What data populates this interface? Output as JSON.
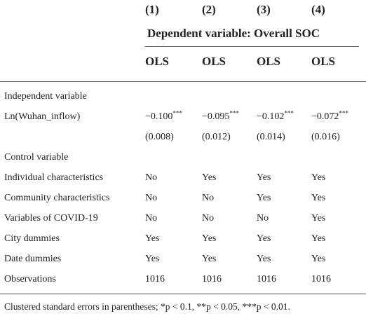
{
  "header": {
    "col_numbers": [
      "(1)",
      "(2)",
      "(3)",
      "(4)"
    ],
    "dependent_variable": "Dependent variable: Overall SOC",
    "methods": [
      "OLS",
      "OLS",
      "OLS",
      "OLS"
    ]
  },
  "sections": {
    "independent_label": "Independent variable",
    "control_label": "Control variable"
  },
  "coef_row": {
    "label": "Ln(Wuhan_inflow)",
    "values": [
      "−0.100",
      "−0.095",
      "−0.102",
      "−0.072"
    ],
    "stars": [
      "***",
      "***",
      "***",
      "***"
    ],
    "se": [
      "(0.008)",
      "(0.012)",
      "(0.014)",
      "(0.016)"
    ]
  },
  "control_rows": [
    {
      "label": "Individual characteristics",
      "values": [
        "No",
        "Yes",
        "Yes",
        "Yes"
      ]
    },
    {
      "label": "Community characteristics",
      "values": [
        "No",
        "No",
        "Yes",
        "Yes"
      ]
    },
    {
      "label": "Variables of COVID-19",
      "values": [
        "No",
        "No",
        "No",
        "Yes"
      ]
    },
    {
      "label": "City dummies",
      "values": [
        "Yes",
        "Yes",
        "Yes",
        "Yes"
      ]
    },
    {
      "label": "Date dummies",
      "values": [
        "Yes",
        "Yes",
        "Yes",
        "Yes"
      ]
    },
    {
      "label": "Observations",
      "values": [
        "1016",
        "1016",
        "1016",
        "1016"
      ]
    }
  ],
  "note": {
    "text": "Clustered standard errors in parentheses; *p < 0.1, **p < 0.05, ***p < 0.01."
  }
}
